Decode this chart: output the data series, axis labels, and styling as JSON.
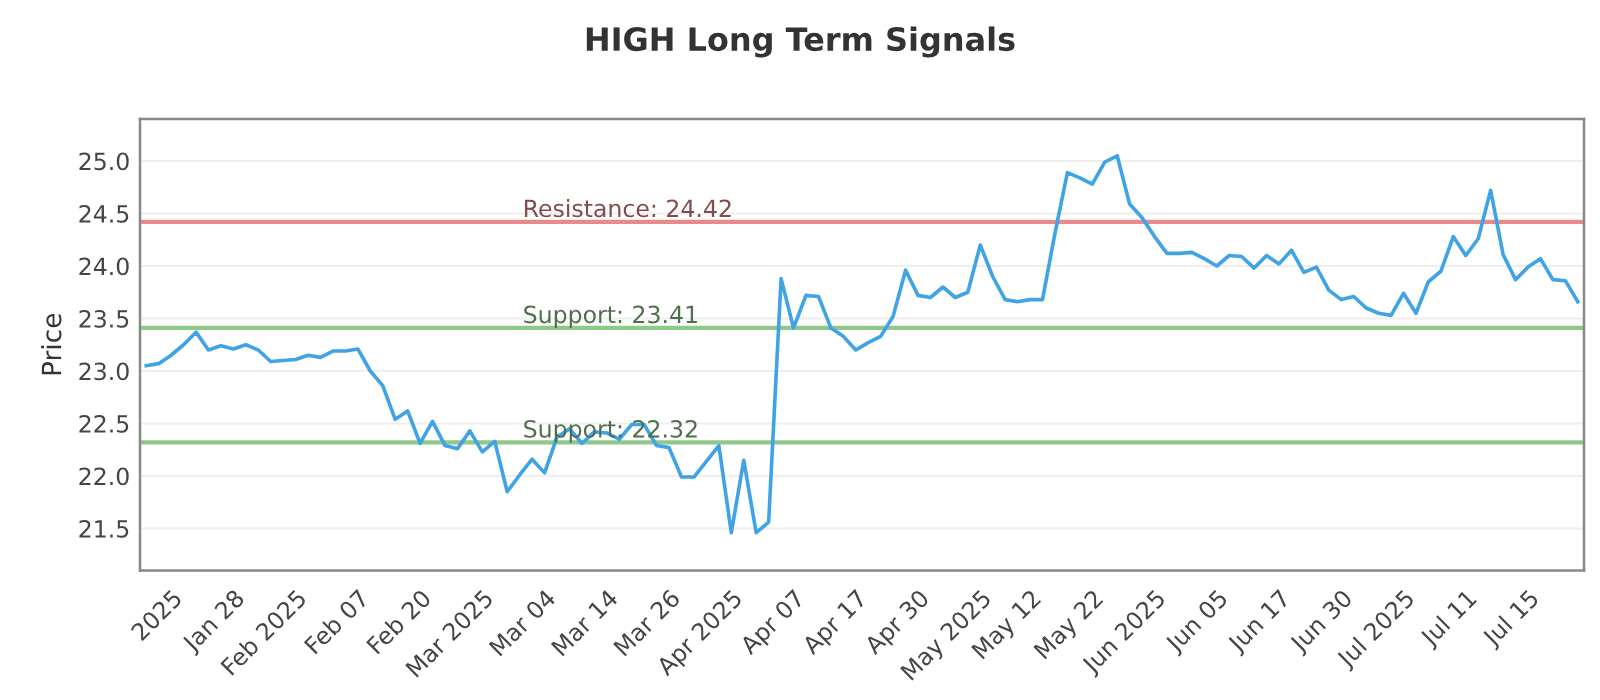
{
  "chart_data": {
    "type": "line",
    "title": "HIGH Long Term Signals",
    "ylabel": "Price",
    "categories": [
      null,
      null,
      "2025",
      null,
      null,
      null,
      null,
      "Jan 28",
      null,
      null,
      null,
      null,
      "Feb 2025",
      null,
      null,
      null,
      null,
      "Feb 07",
      null,
      null,
      null,
      null,
      "Feb 20",
      null,
      null,
      null,
      null,
      "Mar 2025",
      null,
      null,
      null,
      null,
      "Mar 04",
      null,
      null,
      null,
      null,
      "Mar 14",
      null,
      null,
      null,
      null,
      "Mar 26",
      null,
      null,
      null,
      null,
      "Apr 2025",
      null,
      null,
      null,
      null,
      "Apr 07",
      null,
      null,
      null,
      null,
      "Apr 17",
      null,
      null,
      null,
      null,
      "Apr 30",
      null,
      null,
      null,
      null,
      "May 2025",
      null,
      null,
      null,
      "May 12",
      null,
      null,
      null,
      null,
      "May 22",
      null,
      null,
      null,
      null,
      "Jun 2025",
      null,
      null,
      null,
      null,
      "Jun 05",
      null,
      null,
      null,
      null,
      "Jun 17",
      null,
      null,
      null,
      null,
      "Jun 30",
      null,
      null,
      null,
      null,
      "Jul 2025",
      null,
      null,
      null,
      null,
      "Jul 11",
      null,
      null,
      null,
      null,
      "Jul 15",
      null,
      null,
      null,
      null
    ],
    "series": [
      {
        "color": "#3fa3e6",
        "values": [
          23.05,
          23.07,
          23.15,
          23.25,
          23.37,
          23.2,
          23.24,
          23.21,
          23.25,
          23.2,
          23.09,
          23.1,
          23.11,
          23.15,
          23.13,
          23.19,
          23.19,
          23.21,
          23.0,
          22.86,
          22.54,
          22.62,
          22.31,
          22.52,
          22.29,
          22.26,
          22.43,
          22.23,
          22.33,
          21.85,
          22.01,
          22.16,
          22.03,
          22.37,
          22.45,
          22.31,
          22.42,
          22.41,
          22.35,
          22.49,
          22.49,
          22.29,
          22.27,
          21.99,
          21.99,
          22.14,
          22.29,
          21.46,
          22.15,
          21.46,
          21.56,
          23.88,
          23.41,
          23.72,
          23.71,
          23.41,
          23.33,
          23.2,
          23.27,
          23.33,
          23.52,
          23.96,
          23.72,
          23.7,
          23.8,
          23.7,
          23.75,
          24.2,
          23.9,
          23.68,
          23.66,
          23.68,
          23.68,
          24.31,
          24.89,
          24.84,
          24.78,
          24.99,
          25.05,
          24.59,
          24.46,
          24.28,
          24.12,
          24.12,
          24.13,
          24.07,
          24.0,
          24.1,
          24.09,
          23.98,
          24.1,
          24.02,
          24.15,
          23.94,
          23.99,
          23.77,
          23.68,
          23.71,
          23.6,
          23.55,
          23.53,
          23.74,
          23.55,
          23.85,
          23.95,
          24.28,
          24.1,
          24.26,
          24.72,
          24.11,
          23.87,
          23.99,
          24.07,
          23.87,
          23.86,
          23.66
        ]
      }
    ],
    "ylim": [
      21.1,
      25.4
    ],
    "yticks": [
      {
        "value": 21.5,
        "label": "21.5"
      },
      {
        "value": 22.0,
        "label": "22.0"
      },
      {
        "value": 22.5,
        "label": "22.5"
      },
      {
        "value": 23.0,
        "label": "23.0"
      },
      {
        "value": 23.5,
        "label": "23.5"
      },
      {
        "value": 24.0,
        "label": "24.0"
      },
      {
        "value": 24.5,
        "label": "24.5"
      },
      {
        "value": 25.0,
        "label": "25.0"
      }
    ],
    "grid": "y",
    "ref_lines": [
      {
        "axis": "y",
        "value": 24.42,
        "label": "Resistance: 24.42",
        "color": "#e88a8a"
      },
      {
        "axis": "y",
        "value": 23.41,
        "label": "Support: 23.41",
        "color": "#90c88a"
      },
      {
        "axis": "y",
        "value": 22.32,
        "label": "Support: 22.32",
        "color": "#90c88a"
      }
    ]
  }
}
